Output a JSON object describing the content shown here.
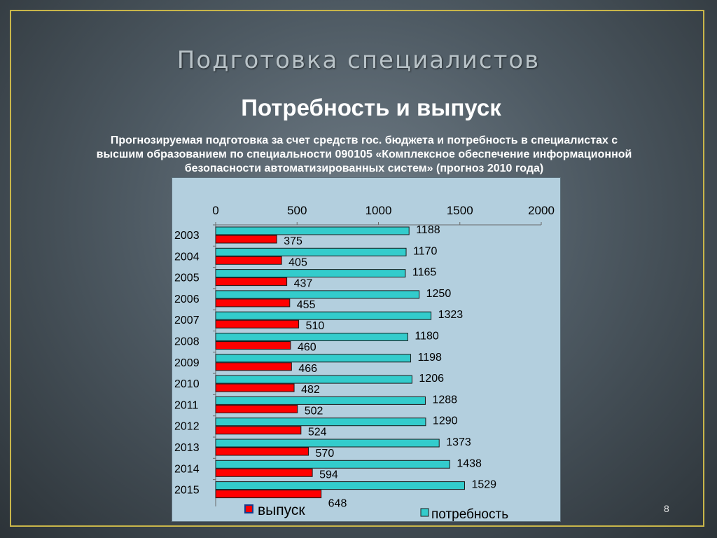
{
  "slide": {
    "title": "Подготовка специалистов",
    "subtitle": "Потребность и выпуск",
    "description_line1": "Прогнозируемая подготовка за счет средств гос. бюджета и потребность в специалистах с",
    "description_line2": "высшим образованием  по специальности 090105 «Комплексное обеспечение информационной",
    "description_line3": "безопасности автоматизированных систем» (прогноз 2010 года)",
    "page_number": "8"
  },
  "colors": {
    "vypusk": "#ff0000",
    "potrebnost": "#33cccc",
    "panel": "#b3cfde"
  },
  "chart_data": {
    "type": "bar",
    "orientation": "horizontal",
    "categories": [
      "2003",
      "2004",
      "2005",
      "2006",
      "2007",
      "2008",
      "2009",
      "2010",
      "2011",
      "2012",
      "2013",
      "2014",
      "2015"
    ],
    "series": [
      {
        "name": "потребность",
        "values": [
          1188,
          1170,
          1165,
          1250,
          1323,
          1180,
          1198,
          1206,
          1288,
          1290,
          1373,
          1438,
          1529
        ]
      },
      {
        "name": "выпуск",
        "values": [
          375,
          405,
          437,
          455,
          510,
          460,
          466,
          482,
          502,
          524,
          570,
          594,
          648
        ]
      }
    ],
    "xlim": [
      0,
      2000
    ],
    "xticks": [
      "0",
      "500",
      "1000",
      "1500",
      "2000"
    ],
    "x_axis_position": "top",
    "grid": false,
    "legend": "bottom",
    "legend_labels": {
      "vypusk": "выпуск",
      "potrebnost": "потребность"
    }
  }
}
